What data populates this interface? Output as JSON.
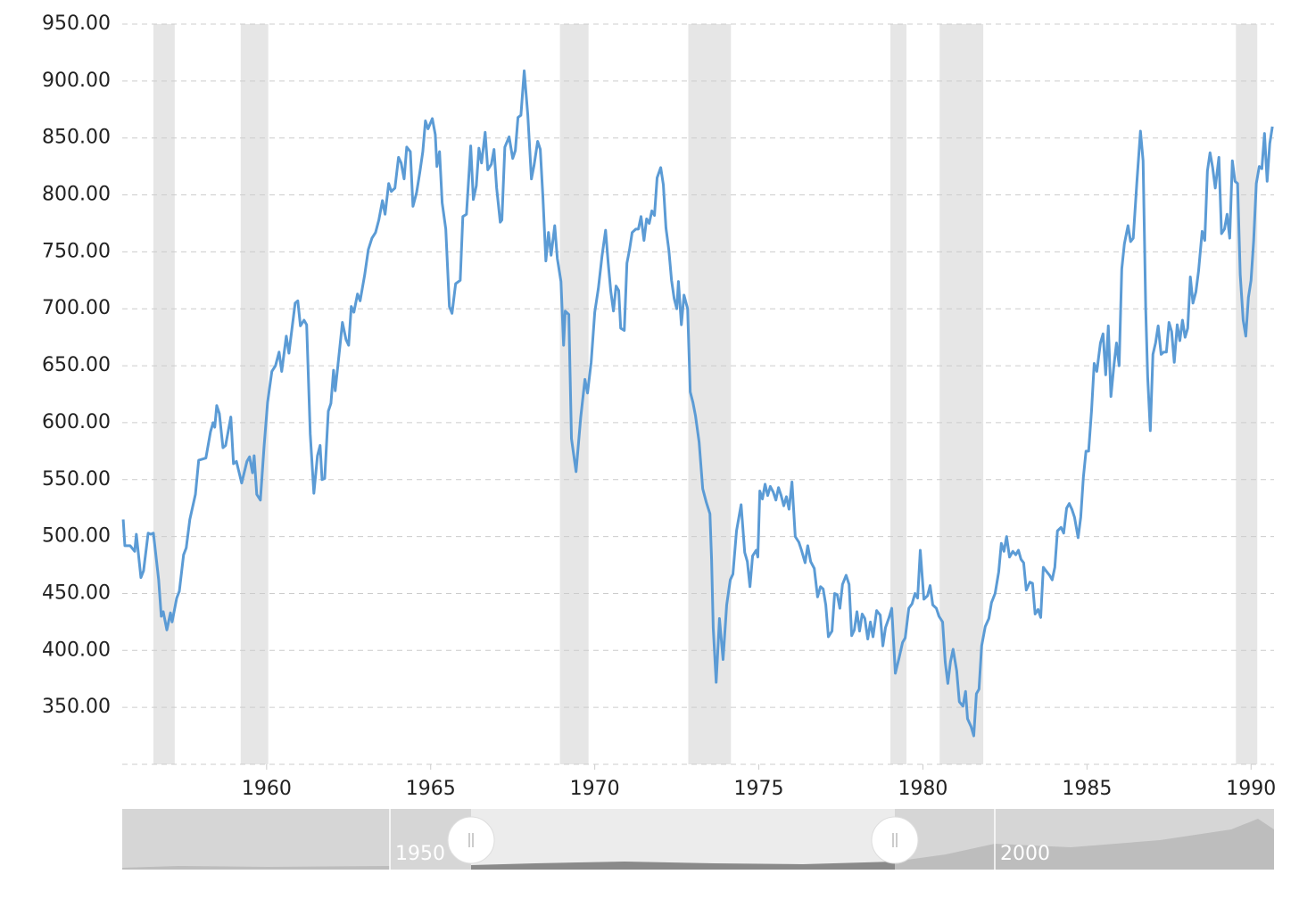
{
  "chart_data": {
    "type": "line",
    "xlim": [
      1955.6,
      1990.7
    ],
    "ylim": [
      300,
      950
    ],
    "xticks": [
      1960,
      1965,
      1970,
      1975,
      1980,
      1985,
      1990
    ],
    "yticks": [
      {
        "value": 350,
        "label": "350.00"
      },
      {
        "value": 400,
        "label": "400.00"
      },
      {
        "value": 450,
        "label": "450.00"
      },
      {
        "value": 500,
        "label": "500.00"
      },
      {
        "value": 550,
        "label": "550.00"
      },
      {
        "value": 600,
        "label": "600.00"
      },
      {
        "value": 650,
        "label": "650.00"
      },
      {
        "value": 700,
        "label": "700.00"
      },
      {
        "value": 750,
        "label": "750.00"
      },
      {
        "value": 800,
        "label": "800.00"
      },
      {
        "value": 850,
        "label": "850.00"
      },
      {
        "value": 900,
        "label": "900.00"
      },
      {
        "value": 950,
        "label": "950.00"
      }
    ],
    "grid": true,
    "recession_color": "#e6e6e6",
    "recessions": [
      [
        1956.55,
        1957.2
      ],
      [
        1959.21,
        1960.05
      ],
      [
        1968.94,
        1969.81
      ],
      [
        1972.85,
        1974.15
      ],
      [
        1979.01,
        1979.5
      ],
      [
        1980.51,
        1981.84
      ],
      [
        1989.54,
        1990.19
      ]
    ],
    "x": [
      1955.63,
      1955.68,
      1955.84,
      1955.98,
      1956.03,
      1956.17,
      1956.25,
      1956.39,
      1956.47,
      1956.55,
      1956.71,
      1956.79,
      1956.85,
      1956.96,
      1957.07,
      1957.12,
      1957.26,
      1957.34,
      1957.47,
      1957.55,
      1957.66,
      1957.83,
      1957.93,
      1958.15,
      1958.29,
      1958.37,
      1958.42,
      1958.48,
      1958.56,
      1958.67,
      1958.75,
      1958.91,
      1958.99,
      1959.08,
      1959.24,
      1959.4,
      1959.48,
      1959.57,
      1959.62,
      1959.7,
      1959.81,
      1959.92,
      1960.03,
      1960.16,
      1960.27,
      1960.38,
      1960.46,
      1960.6,
      1960.68,
      1960.87,
      1960.95,
      1961.03,
      1961.14,
      1961.22,
      1961.33,
      1961.44,
      1961.55,
      1961.63,
      1961.69,
      1961.77,
      1961.88,
      1961.96,
      1962.04,
      1962.09,
      1962.23,
      1962.31,
      1962.42,
      1962.5,
      1962.58,
      1962.66,
      1962.77,
      1962.85,
      1962.99,
      1963.1,
      1963.21,
      1963.32,
      1963.42,
      1963.53,
      1963.61,
      1963.72,
      1963.8,
      1963.91,
      1964.02,
      1964.1,
      1964.19,
      1964.27,
      1964.38,
      1964.46,
      1964.57,
      1964.67,
      1964.76,
      1964.84,
      1964.92,
      1965.05,
      1965.14,
      1965.19,
      1965.27,
      1965.35,
      1965.46,
      1965.57,
      1965.65,
      1965.76,
      1965.9,
      1965.98,
      1966.09,
      1966.22,
      1966.3,
      1966.39,
      1966.47,
      1966.55,
      1966.66,
      1966.74,
      1966.85,
      1966.93,
      1967.01,
      1967.12,
      1967.17,
      1967.26,
      1967.39,
      1967.5,
      1967.58,
      1967.66,
      1967.75,
      1967.85,
      1967.96,
      1968.07,
      1968.15,
      1968.26,
      1968.34,
      1968.42,
      1968.51,
      1968.59,
      1968.67,
      1968.78,
      1968.86,
      1968.97,
      1969.05,
      1969.1,
      1969.21,
      1969.29,
      1969.43,
      1969.57,
      1969.7,
      1969.78,
      1969.89,
      1970.0,
      1970.11,
      1970.22,
      1970.33,
      1970.41,
      1970.49,
      1970.57,
      1970.65,
      1970.73,
      1970.79,
      1970.9,
      1970.98,
      1971.06,
      1971.14,
      1971.25,
      1971.33,
      1971.41,
      1971.5,
      1971.58,
      1971.66,
      1971.74,
      1971.82,
      1971.9,
      1972.01,
      1972.09,
      1972.17,
      1972.26,
      1972.34,
      1972.42,
      1972.5,
      1972.55,
      1972.64,
      1972.72,
      1972.83,
      1972.91,
      1972.99,
      1973.07,
      1973.18,
      1973.29,
      1973.4,
      1973.51,
      1973.56,
      1973.61,
      1973.7,
      1973.8,
      1973.91,
      1974.02,
      1974.13,
      1974.21,
      1974.32,
      1974.46,
      1974.57,
      1974.65,
      1974.73,
      1974.81,
      1974.92,
      1974.97,
      1975.03,
      1975.11,
      1975.19,
      1975.27,
      1975.35,
      1975.44,
      1975.52,
      1975.6,
      1975.68,
      1975.76,
      1975.84,
      1975.92,
      1976.01,
      1976.11,
      1976.22,
      1976.3,
      1976.41,
      1976.49,
      1976.58,
      1976.69,
      1976.79,
      1976.88,
      1976.96,
      1977.04,
      1977.12,
      1977.23,
      1977.31,
      1977.39,
      1977.47,
      1977.55,
      1977.66,
      1977.75,
      1977.83,
      1977.91,
      1977.99,
      1978.07,
      1978.15,
      1978.23,
      1978.32,
      1978.4,
      1978.48,
      1978.59,
      1978.7,
      1978.78,
      1978.86,
      1978.97,
      1979.05,
      1979.16,
      1979.27,
      1979.38,
      1979.46,
      1979.57,
      1979.67,
      1979.76,
      1979.84,
      1979.92,
      1980.03,
      1980.14,
      1980.22,
      1980.3,
      1980.41,
      1980.49,
      1980.6,
      1980.68,
      1980.76,
      1980.84,
      1980.92,
      1981.03,
      1981.11,
      1981.22,
      1981.3,
      1981.36,
      1981.47,
      1981.55,
      1981.63,
      1981.71,
      1981.79,
      1981.9,
      1982.01,
      1982.09,
      1982.2,
      1982.31,
      1982.39,
      1982.47,
      1982.55,
      1982.64,
      1982.74,
      1982.83,
      1982.91,
      1982.99,
      1983.07,
      1983.15,
      1983.26,
      1983.34,
      1983.42,
      1983.51,
      1983.59,
      1983.67,
      1983.75,
      1983.86,
      1983.94,
      1984.02,
      1984.1,
      1984.21,
      1984.29,
      1984.38,
      1984.46,
      1984.54,
      1984.62,
      1984.73,
      1984.81,
      1984.89,
      1984.97,
      1985.05,
      1985.14,
      1985.22,
      1985.3,
      1985.41,
      1985.49,
      1985.57,
      1985.65,
      1985.73,
      1985.82,
      1985.9,
      1985.98,
      1986.06,
      1986.14,
      1986.25,
      1986.33,
      1986.41,
      1986.52,
      1986.63,
      1986.71,
      1986.79,
      1986.85,
      1986.93,
      1987.01,
      1987.09,
      1987.17,
      1987.26,
      1987.34,
      1987.42,
      1987.5,
      1987.58,
      1987.66,
      1987.75,
      1987.83,
      1987.91,
      1987.99,
      1988.07,
      1988.15,
      1988.23,
      1988.32,
      1988.4,
      1988.51,
      1988.59,
      1988.67,
      1988.75,
      1988.83,
      1988.91,
      1989.02,
      1989.1,
      1989.19,
      1989.27,
      1989.35,
      1989.43,
      1989.51,
      1989.59,
      1989.67,
      1989.76,
      1989.84,
      1989.92,
      1990.0,
      1990.08,
      1990.16,
      1990.25,
      1990.33,
      1990.41,
      1990.49,
      1990.57,
      1990.65
    ],
    "series": [
      {
        "color": "#5b9bd5",
        "values": [
          515,
          492,
          492,
          487,
          502,
          464,
          470,
          503,
          502,
          503,
          462,
          430,
          434,
          418,
          433,
          425,
          446,
          452,
          484,
          490,
          515,
          537,
          567,
          569,
          592,
          600,
          596,
          615,
          608,
          578,
          580,
          605,
          564,
          566,
          547,
          566,
          570,
          556,
          571,
          537,
          532,
          578,
          618,
          645,
          650,
          662,
          645,
          676,
          661,
          705,
          707,
          685,
          690,
          686,
          590,
          538,
          571,
          580,
          550,
          551,
          610,
          617,
          646,
          628,
          666,
          688,
          673,
          668,
          702,
          697,
          713,
          707,
          730,
          752,
          762,
          767,
          778,
          795,
          783,
          810,
          803,
          806,
          833,
          828,
          814,
          842,
          838,
          790,
          802,
          820,
          838,
          865,
          858,
          867,
          853,
          825,
          838,
          793,
          770,
          702,
          696,
          722,
          725,
          781,
          783,
          843,
          796,
          808,
          841,
          828,
          855,
          822,
          827,
          840,
          806,
          776,
          778,
          842,
          851,
          832,
          839,
          868,
          870,
          909,
          870,
          814,
          826,
          847,
          840,
          798,
          742,
          767,
          747,
          773,
          744,
          724,
          668,
          698,
          695,
          586,
          557,
          604,
          638,
          626,
          653,
          697,
          718,
          746,
          769,
          740,
          715,
          698,
          720,
          716,
          683,
          681,
          740,
          752,
          767,
          770,
          770,
          781,
          760,
          779,
          775,
          786,
          782,
          815,
          824,
          809,
          771,
          751,
          725,
          709,
          700,
          724,
          686,
          712,
          700,
          627,
          618,
          606,
          583,
          542,
          530,
          520,
          480,
          420,
          372,
          428,
          392,
          440,
          462,
          467,
          505,
          528,
          486,
          478,
          456,
          483,
          488,
          482,
          540,
          533,
          546,
          536,
          544,
          539,
          532,
          543,
          536,
          527,
          535,
          524,
          548,
          500,
          495,
          488,
          477,
          492,
          478,
          472,
          447,
          456,
          454,
          440,
          412,
          417,
          450,
          449,
          437,
          458,
          466,
          458,
          413,
          418,
          434,
          417,
          432,
          428,
          410,
          425,
          412,
          435,
          431,
          404,
          420,
          429,
          437,
          380,
          393,
          407,
          411,
          437,
          441,
          450,
          446,
          488,
          445,
          448,
          457,
          440,
          437,
          430,
          425,
          390,
          371,
          390,
          401,
          382,
          355,
          351,
          364,
          340,
          333,
          325,
          362,
          366,
          404,
          421,
          428,
          442,
          450,
          469,
          494,
          487,
          500,
          482,
          487,
          484,
          488,
          480,
          477,
          453,
          460,
          459,
          432,
          436,
          429,
          473,
          470,
          466,
          462,
          473,
          505,
          508,
          503,
          525,
          529,
          524,
          517,
          499,
          517,
          552,
          575,
          575,
          611,
          652,
          645,
          670,
          678,
          642,
          685,
          623,
          650,
          670,
          650,
          735,
          757,
          773,
          759,
          762,
          811,
          856,
          830,
          700,
          640,
          593,
          660,
          670,
          685,
          660,
          662,
          662,
          688,
          680,
          653,
          686,
          672,
          690,
          675,
          683,
          728,
          705,
          715,
          733,
          768,
          760,
          821,
          837,
          824,
          806,
          833,
          766,
          770,
          783,
          762,
          830,
          812,
          810,
          730,
          690,
          676,
          710,
          725,
          760,
          810,
          825,
          823,
          854,
          812,
          845,
          860
        ]
      }
    ]
  },
  "navigator": {
    "labels": [
      "1950",
      "2000"
    ]
  }
}
